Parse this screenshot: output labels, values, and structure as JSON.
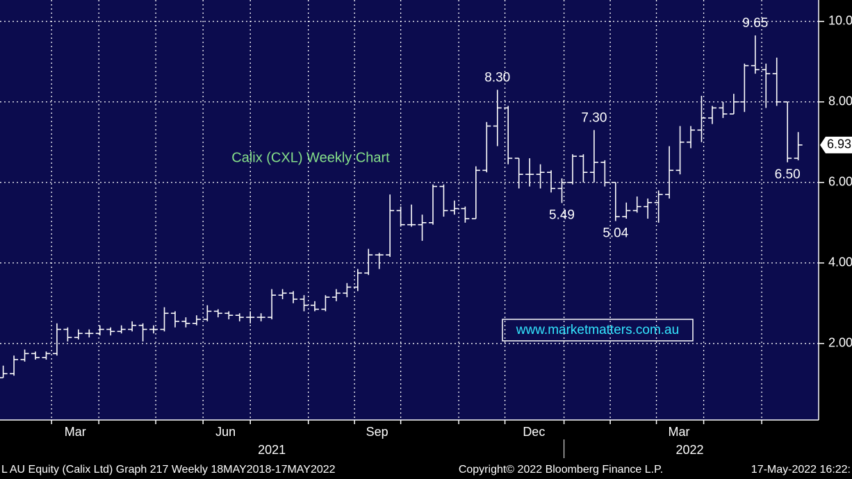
{
  "chart_data": {
    "type": "ohlc",
    "title": "Calix (CXL) Weekly Chart",
    "watermark": "www.marketmatters.com.au",
    "color": "#ffffff",
    "title_color": "#86e08a",
    "watermark_color": "#33e6ff",
    "background": "#0c0c4e",
    "grid": true,
    "x": [
      0,
      1,
      2,
      3,
      4,
      5,
      6,
      7,
      8,
      9,
      10,
      11,
      12,
      13,
      14,
      15,
      16,
      17,
      18,
      19,
      20,
      21,
      22,
      23,
      24,
      25,
      26,
      27,
      28,
      29,
      30,
      31,
      32,
      33,
      34,
      35,
      36,
      37,
      38,
      39,
      40,
      41,
      42,
      43,
      44,
      45,
      46,
      47,
      48,
      49,
      50,
      51,
      52,
      53,
      54,
      55,
      56,
      57,
      58,
      59,
      60,
      61,
      62,
      63,
      64,
      65,
      66,
      67,
      68,
      69,
      70,
      71,
      72,
      73,
      74
    ],
    "open": [
      1.15,
      1.25,
      1.6,
      1.75,
      1.65,
      1.75,
      2.35,
      2.15,
      2.25,
      2.25,
      2.35,
      2.3,
      2.35,
      2.45,
      2.35,
      2.35,
      2.75,
      2.55,
      2.5,
      2.6,
      2.8,
      2.75,
      2.7,
      2.65,
      2.65,
      2.65,
      3.2,
      3.25,
      3.1,
      2.95,
      2.85,
      3.15,
      3.25,
      3.4,
      3.75,
      4.2,
      4.2,
      5.3,
      4.95,
      4.95,
      5.0,
      5.9,
      5.3,
      5.35,
      5.1,
      6.3,
      7.4,
      7.85,
      6.6,
      6.2,
      6.2,
      6.25,
      5.85,
      6.0,
      6.65,
      6.25,
      6.5,
      6.0,
      5.15,
      5.3,
      5.4,
      5.5,
      5.7,
      6.3,
      7.0,
      7.3,
      7.6,
      7.85,
      7.7,
      8.0,
      8.9,
      8.8,
      8.7,
      8.0,
      6.6
    ],
    "high": [
      1.45,
      1.7,
      1.85,
      1.8,
      1.8,
      2.5,
      2.4,
      2.35,
      2.35,
      2.45,
      2.4,
      2.45,
      2.55,
      2.5,
      2.45,
      2.9,
      2.8,
      2.65,
      2.7,
      2.95,
      2.85,
      2.8,
      2.75,
      2.8,
      2.75,
      3.35,
      3.35,
      3.3,
      3.2,
      3.05,
      3.2,
      3.35,
      3.5,
      3.85,
      4.35,
      4.25,
      5.7,
      5.4,
      5.45,
      5.2,
      5.95,
      5.95,
      5.55,
      5.4,
      6.4,
      7.5,
      8.3,
      7.9,
      6.6,
      6.6,
      6.45,
      6.3,
      6.1,
      6.7,
      6.7,
      7.3,
      6.55,
      6.0,
      5.5,
      5.65,
      5.6,
      5.8,
      6.9,
      7.4,
      7.4,
      8.15,
      7.9,
      8.0,
      8.2,
      8.95,
      9.65,
      8.95,
      9.1,
      8.0,
      7.25
    ],
    "low": [
      1.15,
      1.2,
      1.55,
      1.6,
      1.6,
      1.7,
      2.05,
      2.1,
      2.15,
      2.2,
      2.2,
      2.25,
      2.3,
      2.05,
      2.25,
      2.3,
      2.4,
      2.4,
      2.45,
      2.55,
      2.65,
      2.6,
      2.55,
      2.5,
      2.55,
      2.6,
      3.1,
      3.0,
      2.8,
      2.8,
      2.8,
      3.05,
      3.15,
      3.3,
      3.7,
      3.85,
      4.15,
      4.9,
      4.9,
      4.55,
      4.95,
      5.15,
      5.2,
      5.0,
      5.1,
      6.25,
      6.9,
      6.45,
      5.85,
      5.9,
      5.85,
      5.75,
      5.49,
      5.95,
      6.0,
      6.0,
      5.9,
      5.04,
      5.1,
      5.25,
      5.1,
      5.0,
      5.6,
      6.2,
      6.85,
      7.0,
      7.45,
      7.6,
      7.7,
      7.75,
      8.7,
      7.85,
      7.9,
      6.5,
      6.55
    ],
    "close": [
      1.25,
      1.6,
      1.75,
      1.65,
      1.75,
      2.35,
      2.15,
      2.25,
      2.25,
      2.35,
      2.3,
      2.35,
      2.45,
      2.35,
      2.35,
      2.75,
      2.55,
      2.5,
      2.6,
      2.8,
      2.75,
      2.7,
      2.65,
      2.65,
      2.65,
      3.2,
      3.25,
      3.1,
      2.95,
      2.85,
      3.15,
      3.25,
      3.4,
      3.75,
      4.2,
      4.2,
      5.3,
      4.95,
      4.95,
      5.0,
      5.9,
      5.3,
      5.35,
      5.1,
      6.3,
      7.4,
      7.85,
      6.6,
      6.2,
      6.2,
      6.25,
      5.85,
      6.0,
      6.65,
      6.25,
      6.5,
      6.0,
      5.15,
      5.3,
      5.4,
      5.5,
      5.7,
      6.3,
      7.0,
      7.3,
      7.6,
      7.85,
      7.7,
      8.0,
      8.9,
      8.8,
      8.7,
      8.0,
      6.6,
      6.93
    ],
    "xlim": [
      -0.3,
      75.9
    ],
    "ylim": [
      0.1,
      10.53
    ],
    "yticks": [
      {
        "value": 10,
        "label": "10.0"
      },
      {
        "value": 8,
        "label": "8.00"
      },
      {
        "value": 6,
        "label": "6.00"
      },
      {
        "value": 4,
        "label": "4.00"
      },
      {
        "value": 2,
        "label": "2.00"
      }
    ],
    "xticks": [
      {
        "value": 6.7,
        "label": "Mar"
      },
      {
        "value": 20.7,
        "label": "Jun"
      },
      {
        "value": 34.8,
        "label": "Sep"
      },
      {
        "value": 49.4,
        "label": "Dec"
      },
      {
        "value": 62.9,
        "label": "Mar"
      }
    ],
    "xgrid": [
      4.5,
      8.9,
      14.2,
      18.6,
      23.0,
      28.4,
      32.7,
      37.0,
      42.4,
      46.7,
      52.2,
      56.5,
      60.8,
      65.2,
      70.6
    ],
    "year_ticks": [
      {
        "value": 25.0,
        "label": "2021"
      },
      {
        "value": 63.9,
        "label": "2022"
      }
    ],
    "year_breaks": [
      52.2
    ],
    "annotations": [
      {
        "index": 70,
        "value": 9.65,
        "label": "9.65",
        "position": "above"
      },
      {
        "index": 46,
        "value": 8.3,
        "label": "8.30",
        "position": "above"
      },
      {
        "index": 55,
        "value": 7.3,
        "label": "7.30",
        "position": "above"
      },
      {
        "index": 52,
        "value": 5.49,
        "label": "5.49",
        "position": "below"
      },
      {
        "index": 57,
        "value": 5.04,
        "label": "5.04",
        "position": "below"
      },
      {
        "index": 73,
        "value": 6.5,
        "label": "6.50",
        "position": "below"
      }
    ],
    "last_price": 6.93
  },
  "footer": {
    "left": "L AU Equity (Calix Ltd) Graph 217  Weekly 18MAY2018-17MAY2022",
    "center": "Copyright© 2022 Bloomberg Finance L.P.",
    "right": "17-May-2022 16:22:"
  }
}
